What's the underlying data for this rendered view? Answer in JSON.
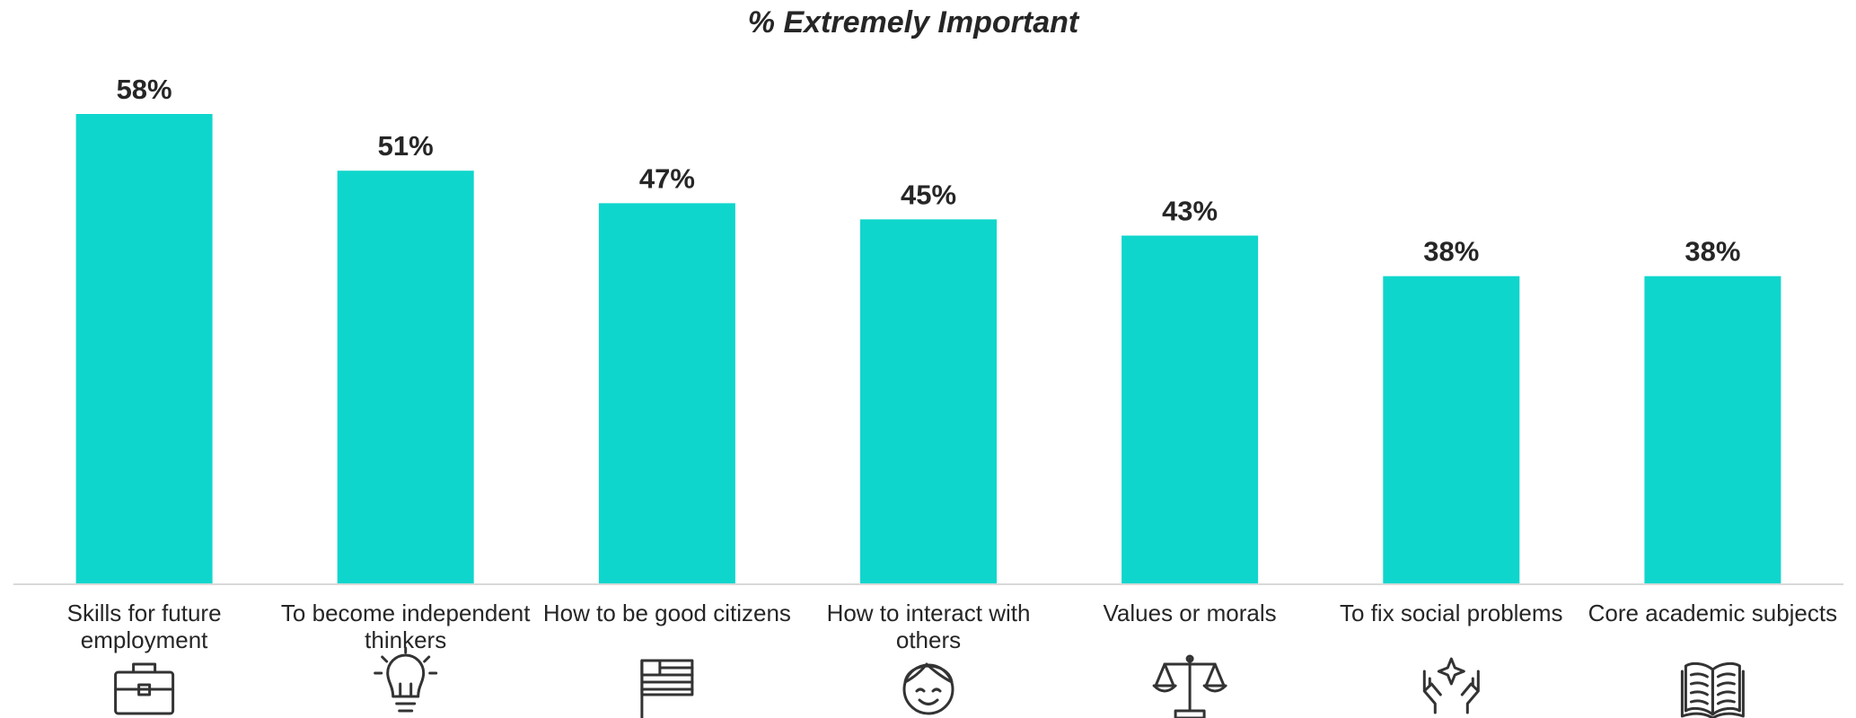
{
  "chart_data": {
    "type": "bar",
    "title": "% Extremely Important",
    "categories": [
      "Skills for future employment",
      "To become independent thinkers",
      "How to be good citizens",
      "How to interact with others",
      "Values or morals",
      "To fix social problems",
      "Core academic subjects"
    ],
    "category_lines": [
      [
        "Skills for future",
        "employment"
      ],
      [
        "To become independent",
        "thinkers"
      ],
      [
        "How to be good citizens"
      ],
      [
        "How to interact with",
        "others"
      ],
      [
        "Values or morals"
      ],
      [
        "To fix social problems"
      ],
      [
        "Core academic subjects"
      ]
    ],
    "values": [
      58,
      51,
      47,
      45,
      43,
      38,
      38
    ],
    "data_labels": [
      "58%",
      "51%",
      "47%",
      "45%",
      "43%",
      "38%",
      "38%"
    ],
    "ylim": [
      0,
      58
    ],
    "grid": false,
    "legend": "none",
    "xlabel": "",
    "ylabel": "",
    "bar_color": "#0FD6CC",
    "axis_color": "#D9D9D9",
    "text_color": "#262626"
  },
  "icons": [
    "briefcase-icon",
    "lightbulb-icon",
    "flag-icon",
    "smiling-face-icon",
    "scales-icon",
    "caring-hands-icon",
    "open-book-icon"
  ]
}
